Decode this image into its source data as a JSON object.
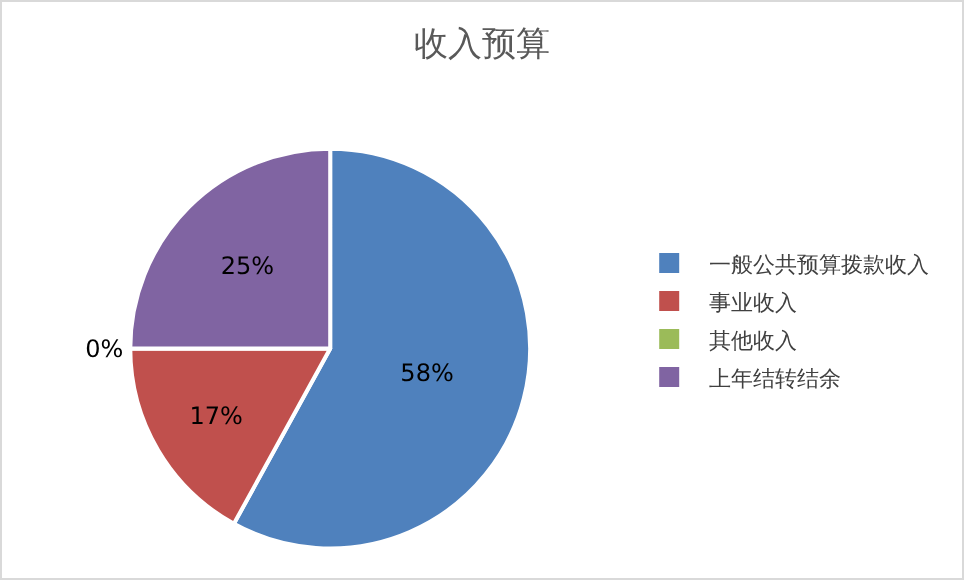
{
  "chart_data": {
    "type": "pie",
    "title": "收入预算",
    "categories": [
      "一般公共预算拨款收入",
      "事业收入",
      "其他收入",
      "上年结转结余"
    ],
    "values": [
      58,
      17,
      0,
      25
    ],
    "colors": [
      "#4f81bd",
      "#c0504d",
      "#9bbb59",
      "#8064a2"
    ],
    "value_labels": [
      "58%",
      "17%",
      "0%",
      "25%"
    ],
    "legend": "right"
  }
}
